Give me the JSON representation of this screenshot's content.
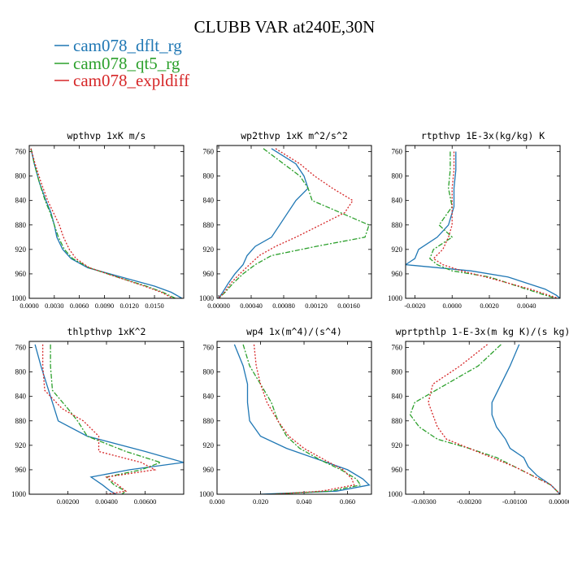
{
  "title": "CLUBB VAR at240E,30N",
  "legend": [
    {
      "label": "cam078_dflt_rg",
      "color": "#1f77b4"
    },
    {
      "label": "cam078_qt5_rg",
      "color": "#2ca02c"
    },
    {
      "label": "cam078_expldiff",
      "color": "#d62728"
    }
  ],
  "chart_data": [
    {
      "type": "line",
      "title": "wpthvp  1xK m/s",
      "ylim": [
        1000,
        750
      ],
      "yticks": [
        760,
        800,
        840,
        880,
        920,
        960,
        1000
      ],
      "xlim": [
        0,
        0.0185
      ],
      "xticks": [
        {
          "v": 0,
          "label": "0.0000"
        },
        {
          "v": 0.003,
          "label": "0.0030"
        },
        {
          "v": 0.006,
          "label": "0.0060"
        },
        {
          "v": 0.009,
          "label": "0.0090"
        },
        {
          "v": 0.012,
          "label": "0.0120"
        },
        {
          "v": 0.015,
          "label": "0.0150"
        }
      ],
      "y": [
        755,
        780,
        810,
        840,
        860,
        880,
        900,
        920,
        935,
        950,
        965,
        980,
        990,
        1000
      ],
      "series": [
        {
          "name": "cam078_dflt_rg",
          "values": [
            0.0002,
            0.0006,
            0.0012,
            0.002,
            0.0026,
            0.003,
            0.0033,
            0.004,
            0.005,
            0.007,
            0.011,
            0.015,
            0.017,
            0.0183
          ]
        },
        {
          "name": "cam078_qt5_rg",
          "values": [
            0.0002,
            0.0006,
            0.0012,
            0.0019,
            0.0025,
            0.003,
            0.0035,
            0.0042,
            0.0052,
            0.0072,
            0.0105,
            0.014,
            0.016,
            0.0175
          ]
        },
        {
          "name": "cam078_expldiff",
          "values": [
            0.0002,
            0.0007,
            0.0014,
            0.0022,
            0.0029,
            0.0036,
            0.0041,
            0.0048,
            0.0056,
            0.0072,
            0.0105,
            0.0138,
            0.0158,
            0.0172
          ]
        }
      ]
    },
    {
      "type": "line",
      "title": "wp2thvp  1xK m^2/s^2",
      "ylim": [
        1000,
        750
      ],
      "yticks": [
        760,
        800,
        840,
        880,
        920,
        960,
        1000
      ],
      "xlim": [
        -2e-05,
        0.00188
      ],
      "xticks": [
        {
          "v": 0,
          "label": "0.00000"
        },
        {
          "v": 0.0004,
          "label": "0.00040"
        },
        {
          "v": 0.0008,
          "label": "0.00080"
        },
        {
          "v": 0.0012,
          "label": "0.00120"
        },
        {
          "v": 0.0016,
          "label": "0.00160"
        }
      ],
      "y": [
        755,
        780,
        800,
        820,
        840,
        860,
        880,
        900,
        915,
        930,
        945,
        960,
        975,
        990,
        1000
      ],
      "series": [
        {
          "name": "cam078_dflt_rg",
          "values": [
            0.00065,
            0.00095,
            0.00105,
            0.0011,
            0.00095,
            0.00085,
            0.00075,
            0.00065,
            0.00045,
            0.00035,
            0.0003,
            0.0002,
            0.00012,
            5e-05,
            0.0
          ]
        },
        {
          "name": "cam078_qt5_rg",
          "values": [
            0.00055,
            0.0008,
            0.001,
            0.0011,
            0.00115,
            0.0015,
            0.00185,
            0.0018,
            0.0012,
            0.00065,
            0.00045,
            0.0003,
            0.00018,
            8e-05,
            0.0
          ]
        },
        {
          "name": "cam078_expldiff",
          "values": [
            0.0007,
            0.001,
            0.00118,
            0.0014,
            0.00165,
            0.00155,
            0.00125,
            0.00095,
            0.0007,
            0.0005,
            0.00038,
            0.00026,
            0.00015,
            7e-05,
            0.0
          ]
        }
      ]
    },
    {
      "type": "line",
      "title": "rtpthvp  1E-3x(kg/kg) K",
      "ylim": [
        1000,
        750
      ],
      "yticks": [
        760,
        800,
        840,
        880,
        920,
        960,
        1000
      ],
      "xlim": [
        -0.0025,
        0.0058
      ],
      "xticks": [
        {
          "v": -0.002,
          "label": "-0.0020"
        },
        {
          "v": 0,
          "label": "0.0000"
        },
        {
          "v": 0.002,
          "label": "0.0020"
        },
        {
          "v": 0.004,
          "label": "0.0040"
        }
      ],
      "y": [
        760,
        790,
        820,
        850,
        880,
        900,
        920,
        935,
        945,
        955,
        965,
        975,
        985,
        995,
        1000
      ],
      "series": [
        {
          "name": "cam078_dflt_rg",
          "values": [
            0.0002,
            0.0002,
            0.0001,
            0.0001,
            -0.0002,
            -0.0008,
            -0.0018,
            -0.002,
            -0.0025,
            0.001,
            0.003,
            0.004,
            0.005,
            0.0056,
            0.0058
          ]
        },
        {
          "name": "cam078_qt5_rg",
          "values": [
            -0.0001,
            -0.0001,
            -0.0002,
            0.0,
            -0.0007,
            0.0,
            -0.001,
            -0.0012,
            -0.0008,
            0.0,
            0.002,
            0.003,
            0.004,
            0.005,
            0.0056
          ]
        },
        {
          "name": "cam078_expldiff",
          "values": [
            0.0001,
            0.0001,
            0.0,
            0.0,
            0.0,
            -0.0002,
            -0.0005,
            -0.001,
            -0.0005,
            0.0005,
            0.0018,
            0.003,
            0.0042,
            0.0052,
            0.0057
          ]
        }
      ]
    },
    {
      "type": "line",
      "title": "thlpthvp  1xK^2",
      "ylim": [
        1000,
        750
      ],
      "yticks": [
        760,
        800,
        840,
        880,
        920,
        960,
        1000
      ],
      "xlim": [
        0,
        0.008
      ],
      "xticks": [
        {
          "v": 0.002,
          "label": "0.00200"
        },
        {
          "v": 0.004,
          "label": "0.00400"
        },
        {
          "v": 0.006,
          "label": "0.00600"
        }
      ],
      "y": [
        755,
        790,
        830,
        860,
        880,
        905,
        930,
        948,
        960,
        972,
        985,
        995,
        1000
      ],
      "series": [
        {
          "name": "cam078_dflt_rg",
          "values": [
            0.0003,
            0.0006,
            0.001,
            0.0013,
            0.0015,
            0.003,
            0.006,
            0.008,
            0.0052,
            0.0032,
            0.0038,
            0.0042,
            0.0045
          ]
        },
        {
          "name": "cam078_qt5_rg",
          "values": [
            0.0011,
            0.0011,
            0.0012,
            0.002,
            0.0025,
            0.003,
            0.005,
            0.0068,
            0.0058,
            0.004,
            0.0044,
            0.005,
            0.0048
          ]
        },
        {
          "name": "cam078_expldiff",
          "values": [
            0.0007,
            0.0007,
            0.0008,
            0.0017,
            0.0028,
            0.0036,
            0.0036,
            0.0058,
            0.0065,
            0.004,
            0.0046,
            0.005,
            0.004
          ]
        }
      ]
    },
    {
      "type": "line",
      "title": "wp4  1x(m^4)/(s^4)",
      "ylim": [
        1000,
        750
      ],
      "yticks": [
        760,
        800,
        840,
        880,
        920,
        960,
        1000
      ],
      "xlim": [
        0,
        0.071
      ],
      "xticks": [
        {
          "v": 0,
          "label": "0.000"
        },
        {
          "v": 0.02,
          "label": "0.020"
        },
        {
          "v": 0.04,
          "label": "0.040"
        },
        {
          "v": 0.06,
          "label": "0.060"
        }
      ],
      "y": [
        755,
        790,
        820,
        850,
        880,
        905,
        925,
        945,
        960,
        975,
        985,
        995,
        1000
      ],
      "series": [
        {
          "name": "cam078_dflt_rg",
          "values": [
            0.008,
            0.012,
            0.014,
            0.014,
            0.015,
            0.02,
            0.032,
            0.048,
            0.06,
            0.067,
            0.07,
            0.055,
            0.02
          ]
        },
        {
          "name": "cam078_qt5_rg",
          "values": [
            0.012,
            0.015,
            0.02,
            0.025,
            0.028,
            0.032,
            0.038,
            0.048,
            0.057,
            0.064,
            0.066,
            0.052,
            0.025
          ]
        },
        {
          "name": "cam078_expldiff",
          "values": [
            0.017,
            0.018,
            0.02,
            0.023,
            0.028,
            0.033,
            0.04,
            0.05,
            0.058,
            0.062,
            0.063,
            0.048,
            0.026
          ]
        }
      ]
    },
    {
      "type": "line",
      "title": "wprtpthlp  1-E-3x(m kg K)/(s kg)",
      "ylim": [
        1000,
        750
      ],
      "yticks": [
        760,
        800,
        840,
        880,
        920,
        960,
        1000
      ],
      "xlim": [
        -0.0034,
        0.0
      ],
      "xticks": [
        {
          "v": -0.003,
          "label": "-0.00300"
        },
        {
          "v": -0.002,
          "label": "-0.00200"
        },
        {
          "v": -0.001,
          "label": "-0.00100"
        },
        {
          "v": 0,
          "label": "0.00000"
        }
      ],
      "y": [
        755,
        790,
        820,
        850,
        870,
        890,
        910,
        925,
        940,
        955,
        970,
        985,
        1000
      ],
      "series": [
        {
          "name": "cam078_dflt_rg",
          "values": [
            -0.0009,
            -0.0011,
            -0.0013,
            -0.0015,
            -0.0015,
            -0.0014,
            -0.0012,
            -0.0011,
            -0.0008,
            -0.0007,
            -0.0005,
            -0.0002,
            0.0
          ]
        },
        {
          "name": "cam078_qt5_rg",
          "values": [
            -0.0013,
            -0.0018,
            -0.0025,
            -0.0032,
            -0.0033,
            -0.0031,
            -0.0027,
            -0.002,
            -0.0014,
            -0.001,
            -0.0006,
            -0.0002,
            0.0
          ]
        },
        {
          "name": "cam078_expldiff",
          "values": [
            -0.0016,
            -0.0022,
            -0.0028,
            -0.0029,
            -0.0028,
            -0.0027,
            -0.0025,
            -0.002,
            -0.0015,
            -0.001,
            -0.0006,
            -0.0002,
            0.0
          ]
        }
      ]
    }
  ]
}
